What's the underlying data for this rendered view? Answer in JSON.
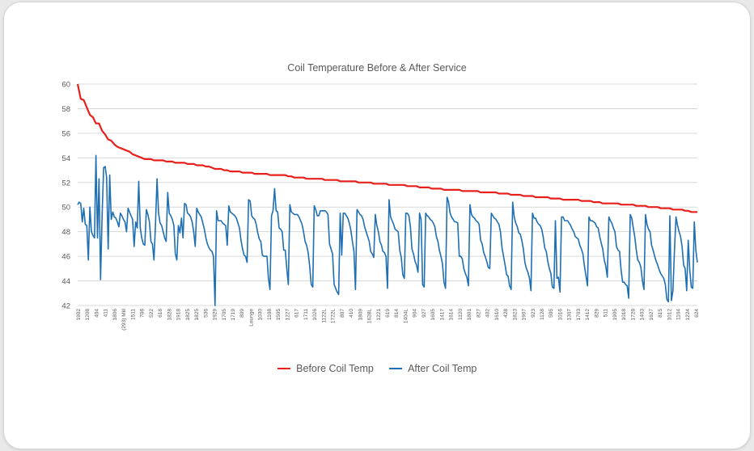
{
  "chart_data": {
    "type": "line",
    "title": "Coil Temperature  Before & After Service",
    "xlabel": "",
    "ylabel": "",
    "ylim": [
      42,
      60
    ],
    "yticks": [
      42,
      44,
      46,
      48,
      50,
      52,
      54,
      56,
      58,
      60
    ],
    "grid": true,
    "legend_position": "bottom",
    "x_tick_labels": [
      "1902",
      "1208",
      "404",
      "411",
      "1806",
      "(293) Mill",
      "1511",
      "708",
      "522",
      "618",
      "1828",
      "1918",
      "1825",
      "1825",
      "536",
      "1929",
      "1705",
      "1719",
      "809",
      "Lounge",
      "1030",
      "1108",
      "1505",
      "1227",
      "617",
      "1711",
      "1026",
      "1122L",
      "1722L",
      "807",
      "410",
      "1809",
      "1628L",
      "1221",
      "619",
      "814",
      "1404L",
      "904",
      "927",
      "1605",
      "1417",
      "1614",
      "1120",
      "1801",
      "827",
      "402",
      "1610",
      "428",
      "1823",
      "1907",
      "923",
      "1128",
      "505",
      "1016",
      "1307",
      "1703",
      "1412",
      "829",
      "511",
      "1905",
      "1018",
      "1728",
      "1403",
      "1627",
      "815",
      "1012",
      "1104",
      "1224",
      "624"
    ],
    "series": [
      {
        "name": "Before Coil Temp",
        "color": "#e8201c",
        "values": [
          60.0,
          58.8,
          58.7,
          58.1,
          57.5,
          57.3,
          56.8,
          56.8,
          56.2,
          55.9,
          55.5,
          55.4,
          55.1,
          54.9,
          54.8,
          54.7,
          54.6,
          54.5,
          54.3,
          54.2,
          54.1,
          54.0,
          53.9,
          53.9,
          53.9,
          53.8,
          53.8,
          53.8,
          53.8,
          53.7,
          53.7,
          53.7,
          53.6,
          53.6,
          53.6,
          53.6,
          53.5,
          53.5,
          53.5,
          53.4,
          53.4,
          53.4,
          53.3,
          53.3,
          53.2,
          53.1,
          53.1,
          53.1,
          53.0,
          53.0,
          52.9,
          52.9,
          52.9,
          52.9,
          52.8,
          52.8,
          52.8,
          52.8,
          52.7,
          52.7,
          52.7,
          52.7,
          52.7,
          52.6,
          52.6,
          52.6,
          52.6,
          52.6,
          52.6,
          52.5,
          52.5,
          52.4,
          52.4,
          52.4,
          52.4,
          52.3,
          52.3,
          52.3,
          52.3,
          52.3,
          52.3,
          52.2,
          52.2,
          52.2,
          52.2,
          52.2,
          52.1,
          52.1,
          52.1,
          52.1,
          52.1,
          52.1,
          52.0,
          52.0,
          52.0,
          52.0,
          52.0,
          51.9,
          51.9,
          51.9,
          51.9,
          51.9,
          51.8,
          51.8,
          51.8,
          51.8,
          51.8,
          51.8,
          51.7,
          51.7,
          51.7,
          51.7,
          51.6,
          51.6,
          51.6,
          51.6,
          51.5,
          51.5,
          51.5,
          51.5,
          51.4,
          51.4,
          51.4,
          51.4,
          51.4,
          51.4,
          51.3,
          51.3,
          51.3,
          51.3,
          51.3,
          51.3,
          51.2,
          51.2,
          51.2,
          51.2,
          51.2,
          51.2,
          51.1,
          51.1,
          51.1,
          51.1,
          51.0,
          51.0,
          51.0,
          51.0,
          50.9,
          50.9,
          50.9,
          50.9,
          50.8,
          50.8,
          50.8,
          50.8,
          50.8,
          50.7,
          50.7,
          50.7,
          50.7,
          50.6,
          50.6,
          50.6,
          50.6,
          50.6,
          50.6,
          50.5,
          50.5,
          50.5,
          50.5,
          50.4,
          50.4,
          50.4,
          50.3,
          50.3,
          50.3,
          50.3,
          50.3,
          50.3,
          50.2,
          50.2,
          50.2,
          50.2,
          50.2,
          50.1,
          50.1,
          50.1,
          50.1,
          50.0,
          50.0,
          50.0,
          50.0,
          49.9,
          49.9,
          49.9,
          49.9,
          49.8,
          49.8,
          49.8,
          49.8,
          49.7,
          49.7,
          49.6,
          49.6,
          49.6
        ]
      },
      {
        "name": "After Coil Temp",
        "color": "#1f6fb3",
        "values": [
          50.2,
          50.4,
          50.3,
          48.8,
          49.9,
          48.6,
          48.5,
          45.7,
          50.0,
          48.0,
          47.7,
          47.5,
          54.2,
          47.5,
          52.3,
          44.1,
          49.3,
          53.2,
          53.3,
          52.4,
          46.6,
          52.6,
          49.0,
          49.6,
          49.2,
          49.1,
          48.8,
          48.4,
          49.5,
          49.3,
          49.0,
          48.8,
          48.0,
          49.9,
          49.6,
          49.3,
          49.0,
          46.8,
          48.8,
          48.3,
          52.1,
          48.3,
          47.5,
          47.0,
          46.9,
          49.8,
          49.4,
          48.8,
          47.2,
          47.0,
          45.7,
          48.6,
          52.3,
          49.5,
          48.7,
          48.5,
          48.0,
          47.5,
          47.2,
          51.2,
          49.5,
          49.3,
          49.0,
          48.5,
          46.2,
          45.7,
          48.5,
          47.9,
          49.1,
          47.5,
          50.3,
          50.2,
          49.5,
          49.4,
          49.2,
          48.8,
          48.0,
          46.8,
          49.9,
          49.6,
          49.4,
          49.2,
          48.7,
          48.2,
          47.5,
          47.0,
          46.7,
          46.5,
          46.4,
          46.0,
          42.0,
          49.7,
          48.9,
          48.9,
          48.9,
          48.7,
          48.6,
          48.5,
          46.9,
          50.1,
          49.6,
          49.5,
          49.4,
          49.3,
          49.1,
          48.7,
          48.3,
          47.3,
          46.6,
          46.1,
          46.0,
          45.5,
          50.6,
          50.5,
          49.3,
          49.1,
          49.0,
          48.6,
          47.9,
          47.4,
          47.2,
          46.1,
          46.0,
          46.0,
          46.0,
          44.2,
          43.3,
          49.3,
          49.7,
          51.5,
          49.7,
          49.6,
          48.3,
          48.2,
          48.0,
          46.5,
          46.5,
          45.0,
          43.7,
          50.2,
          49.6,
          49.5,
          49.4,
          49.4,
          49.4,
          49.2,
          48.9,
          48.6,
          48.0,
          47.2,
          46.9,
          46.3,
          45.2,
          43.7,
          43.5,
          50.1,
          49.8,
          49.3,
          49.3,
          49.7,
          49.7,
          49.7,
          49.7,
          49.6,
          49.4,
          47.0,
          46.6,
          46.2,
          43.7,
          43.4,
          43.1,
          42.9,
          49.5,
          46.1,
          49.5,
          49.5,
          49.3,
          49.1,
          48.7,
          48.1,
          47.2,
          46.4,
          43.3,
          49.8,
          49.6,
          49.4,
          49.3,
          49.0,
          48.4,
          48.0,
          47.6,
          47.2,
          46.4,
          46.2,
          45.9,
          49.4,
          48.5,
          48.0,
          47.2,
          46.9,
          46.4,
          46.3,
          46.0,
          43.4,
          50.6,
          49.2,
          48.9,
          48.6,
          48.2,
          48.1,
          48.0,
          46.5,
          45.9,
          44.5,
          44.2,
          49.5,
          49.5,
          49.3,
          48.4,
          46.6,
          46.2,
          45.6,
          45.3,
          44.7,
          49.5,
          49.0,
          43.7,
          43.5,
          49.5,
          49.3,
          49.2,
          49.0,
          48.9,
          48.7,
          48.4,
          47.6,
          47.2,
          46.5,
          46.0,
          45.4,
          43.9,
          43.4,
          50.8,
          50.4,
          49.5,
          49.2,
          49.0,
          48.8,
          48.8,
          48.7,
          46.0,
          46.0,
          45.8,
          45.0,
          44.6,
          44.3,
          43.6,
          50.2,
          49.4,
          49.2,
          49.1,
          48.9,
          48.8,
          48.6,
          47.3,
          47.0,
          46.3,
          46.0,
          45.6,
          45.1,
          45.0,
          49.5,
          49.3,
          49.1,
          49.0,
          48.8,
          48.6,
          48.0,
          46.7,
          46.0,
          45.3,
          44.5,
          44.4,
          43.6,
          43.3,
          50.4,
          49.2,
          48.7,
          48.4,
          47.9,
          47.8,
          47.3,
          46.6,
          45.5,
          45.0,
          44.7,
          44.2,
          43.2,
          49.5,
          49.1,
          49.1,
          48.8,
          48.6,
          48.5,
          48.2,
          47.6,
          46.7,
          46.4,
          45.6,
          45.0,
          44.6,
          43.5,
          43.4,
          48.9,
          44.2,
          44.3,
          43.1,
          49.2,
          49.2,
          48.9,
          48.9,
          48.9,
          48.7,
          48.5,
          48.2,
          48.0,
          47.6,
          47.5,
          47.4,
          46.9,
          46.6,
          46.2,
          45.2,
          44.4,
          43.6,
          49.2,
          48.9,
          48.9,
          48.8,
          48.7,
          48.4,
          48.3,
          47.6,
          47.1,
          46.6,
          45.7,
          45.2,
          44.3,
          49.2,
          48.9,
          48.7,
          48.3,
          48.0,
          46.8,
          46.5,
          46.4,
          44.9,
          43.9,
          43.9,
          43.7,
          43.6,
          42.6,
          49.4,
          49.1,
          48.3,
          47.6,
          46.5,
          45.7,
          45.5,
          45.1,
          44.0,
          43.3,
          49.4,
          48.6,
          48.2,
          48.0,
          46.9,
          46.5,
          46.0,
          45.6,
          45.3,
          44.9,
          44.6,
          44.4,
          44.2,
          43.7,
          42.5,
          42.3,
          49.3,
          42.4,
          43.2,
          46.5,
          49.2,
          48.5,
          48.0,
          47.6,
          46.8,
          45.3,
          45.0,
          43.2,
          47.3,
          44.9,
          43.5,
          43.4,
          48.8,
          46.5,
          45.5
        ]
      }
    ]
  }
}
